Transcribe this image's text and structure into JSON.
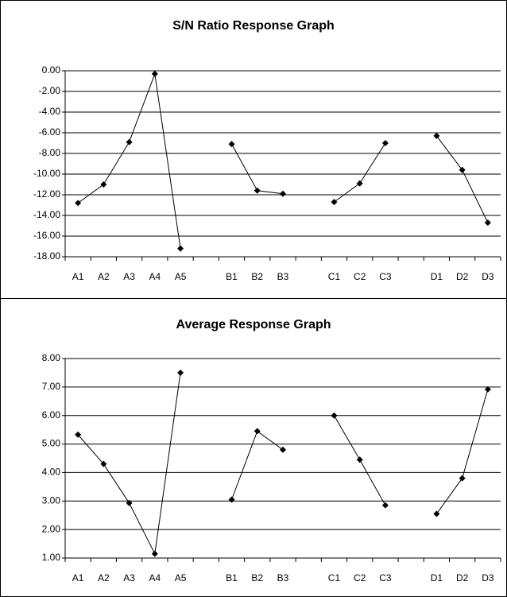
{
  "chart_data": [
    {
      "type": "line",
      "title": "S/N Ratio Response Graph",
      "categories": [
        "A1",
        "A2",
        "A3",
        "A4",
        "A5",
        null,
        "B1",
        "B2",
        "B3",
        null,
        "C1",
        "C2",
        "C3",
        null,
        "D1",
        "D2",
        "D3"
      ],
      "values": [
        -12.8,
        -11.0,
        -6.9,
        -0.3,
        -17.2,
        null,
        -7.1,
        -11.6,
        -11.9,
        null,
        -12.7,
        -10.9,
        -7.0,
        null,
        -6.3,
        -9.6,
        -14.7
      ],
      "color": "#000000",
      "ylim": [
        -18,
        0
      ],
      "yticks": [
        {
          "value": 0,
          "label": "0.00"
        },
        {
          "value": -2,
          "label": "-2.00"
        },
        {
          "value": -4,
          "label": "-4.00"
        },
        {
          "value": -6,
          "label": "-6.00"
        },
        {
          "value": -8,
          "label": "-8.00"
        },
        {
          "value": -10,
          "label": "-10.00"
        },
        {
          "value": -12,
          "label": "-12.00"
        },
        {
          "value": -14,
          "label": "-14.00"
        },
        {
          "value": -16,
          "label": "-16.00"
        },
        {
          "value": -18,
          "label": "-18.00"
        }
      ],
      "grid": true
    },
    {
      "type": "line",
      "title": "Average Response Graph",
      "categories": [
        "A1",
        "A2",
        "A3",
        "A4",
        "A5",
        null,
        "B1",
        "B2",
        "B3",
        null,
        "C1",
        "C2",
        "C3",
        null,
        "D1",
        "D2",
        "D3"
      ],
      "values": [
        5.33,
        4.3,
        2.93,
        1.15,
        7.5,
        null,
        3.05,
        5.45,
        4.8,
        null,
        6.0,
        4.45,
        2.85,
        null,
        2.55,
        3.8,
        6.92
      ],
      "color": "#000000",
      "ylim": [
        1,
        8
      ],
      "yticks": [
        {
          "value": 8,
          "label": "8.00"
        },
        {
          "value": 7,
          "label": "7.00"
        },
        {
          "value": 6,
          "label": "6.00"
        },
        {
          "value": 5,
          "label": "5.00"
        },
        {
          "value": 4,
          "label": "4.00"
        },
        {
          "value": 3,
          "label": "3.00"
        },
        {
          "value": 2,
          "label": "2.00"
        },
        {
          "value": 1,
          "label": "1.00"
        }
      ],
      "grid": true
    }
  ]
}
